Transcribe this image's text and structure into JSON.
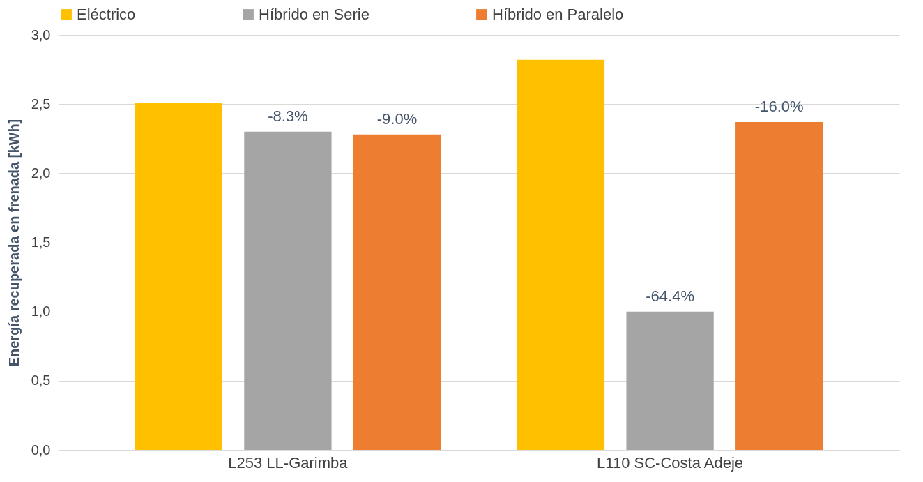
{
  "chart_data": {
    "type": "bar",
    "ylabel": "Energía recuperada en frenada [kWh]",
    "categories": [
      "L253 LL-Garimba",
      "L110 SC-Costa Adeje"
    ],
    "series": [
      {
        "name": "Eléctrico",
        "color": "#ffc000",
        "values": [
          2.51,
          2.82
        ]
      },
      {
        "name": "Híbrido en Serie",
        "color": "#a5a5a5",
        "values": [
          2.3,
          1.0
        ]
      },
      {
        "name": "Híbrido en Paralelo",
        "color": "#ed7d31",
        "values": [
          2.28,
          2.37
        ]
      }
    ],
    "annotations": [
      "-8.3%",
      "-9.0%",
      "-64.4%",
      "-16.0%"
    ],
    "ylim": [
      0,
      3
    ],
    "yticks": [
      {
        "value": 0,
        "label": "0,0"
      },
      {
        "value": 0.5,
        "label": "0,5"
      },
      {
        "value": 1,
        "label": "1,0"
      },
      {
        "value": 1.5,
        "label": "1,5"
      },
      {
        "value": 2,
        "label": "2,0"
      },
      {
        "value": 2.5,
        "label": "2,5"
      },
      {
        "value": 3,
        "label": "3,0"
      }
    ],
    "grid": "y",
    "legend": "top"
  }
}
